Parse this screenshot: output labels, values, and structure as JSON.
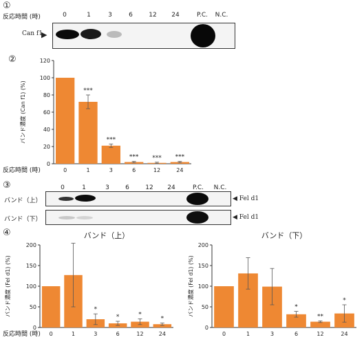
{
  "panel_labels": [
    "①",
    "②",
    "③",
    "④"
  ],
  "time_label": "反応時間 (時)",
  "lanes_1": [
    "0",
    "1",
    "3",
    "6",
    "12",
    "24",
    "P.C.",
    "N.C."
  ],
  "lanes_3": [
    "0",
    "1",
    "3",
    "6",
    "12",
    "24",
    "P.C.",
    "N.C."
  ],
  "blot1_label": "Can f1",
  "blot3_top_label": "バンド（上）",
  "blot3_bottom_label": "バンド（下）",
  "fel_label": "Fel d1",
  "chart_data": [
    {
      "type": "bar",
      "title": "",
      "ylabel": "バンド濃度 (Can f1) (%)",
      "xlabel": "反応時間 (時)",
      "categories": [
        "0",
        "1",
        "3",
        "6",
        "12",
        "24"
      ],
      "values": [
        100,
        72,
        21,
        2,
        1,
        2
      ],
      "errors": [
        0,
        8,
        2,
        0.8,
        0.8,
        0.8
      ],
      "significance": [
        "",
        "***",
        "***",
        "***",
        "***",
        "***"
      ],
      "ylim": [
        0,
        120
      ],
      "yticks": [
        0,
        20,
        40,
        60,
        80,
        100,
        120
      ],
      "color": "#ee8833"
    },
    {
      "type": "bar",
      "title": "バンド（上）",
      "ylabel": "バンド濃度 (Fel d1) (%)",
      "xlabel": "反応時間 (時)",
      "categories": [
        "0",
        "1",
        "3",
        "6",
        "12",
        "24"
      ],
      "values": [
        100,
        127,
        20,
        10,
        14,
        8
      ],
      "errors": [
        0,
        77,
        13,
        5,
        7,
        3
      ],
      "significance": [
        "",
        "",
        "*",
        "*",
        "*",
        "*"
      ],
      "ylim": [
        0,
        200
      ],
      "yticks": [
        0,
        50,
        100,
        150,
        200
      ],
      "color": "#ee8833"
    },
    {
      "type": "bar",
      "title": "バンド（下）",
      "ylabel": "バンド濃度 (Fel d1) (%)",
      "xlabel": "",
      "categories": [
        "0",
        "1",
        "3",
        "6",
        "12",
        "24"
      ],
      "values": [
        100,
        131,
        99,
        32,
        14,
        34
      ],
      "errors": [
        0,
        38,
        44,
        7,
        2,
        21
      ],
      "significance": [
        "",
        "",
        "",
        "*",
        "**",
        "*"
      ],
      "ylim": [
        0,
        200
      ],
      "yticks": [
        0,
        50,
        100,
        150,
        200
      ],
      "color": "#ee8833"
    }
  ]
}
